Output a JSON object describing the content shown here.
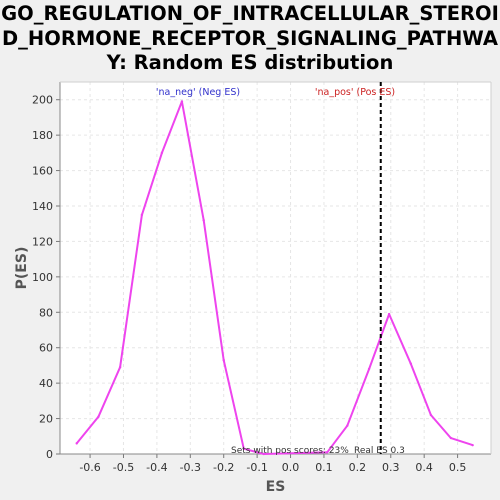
{
  "chart_data": {
    "type": "line",
    "title_lines": [
      "GO_REGULATION_OF_INTRACELLULAR_STEROI",
      "D_HORMONE_RECEPTOR_SIGNALING_PATHWA",
      "Y: Random ES distribution"
    ],
    "xlabel": "ES",
    "ylabel": "P(ES)",
    "xlim": [
      -0.69,
      0.6
    ],
    "ylim": [
      0,
      210
    ],
    "x_ticks": [
      "-0.6",
      "-0.5",
      "-0.4",
      "-0.3",
      "-0.2",
      "-0.1",
      "0.0",
      "0.1",
      "0.2",
      "0.3",
      "0.4",
      "0.5"
    ],
    "y_ticks": [
      "0",
      "20",
      "40",
      "60",
      "80",
      "100",
      "120",
      "140",
      "160",
      "180",
      "200"
    ],
    "grid": true,
    "series": [
      {
        "color": "#ee44ee",
        "x": [
          -0.64,
          -0.575,
          -0.51,
          -0.445,
          -0.385,
          -0.325,
          -0.26,
          -0.2,
          -0.14,
          -0.08,
          0.11,
          0.17,
          0.235,
          0.295,
          0.36,
          0.42,
          0.48,
          0.545
        ],
        "y": [
          6,
          21,
          49,
          135,
          170,
          199,
          132,
          53,
          3,
          0,
          1,
          16,
          48,
          79,
          51,
          22,
          9,
          5
        ]
      }
    ],
    "vline": {
      "x": 0.27,
      "style": "dashed",
      "color": "#000000"
    },
    "annotations": {
      "neg_label": "'na_neg' (Neg ES)",
      "neg_color": "#3333cc",
      "pos_label": "'na_pos' (Pos ES)",
      "pos_color": "#cc2222",
      "bottom_text": "Sets with pos scores: 23%",
      "real_es_text": "Real ES 0.3"
    }
  }
}
